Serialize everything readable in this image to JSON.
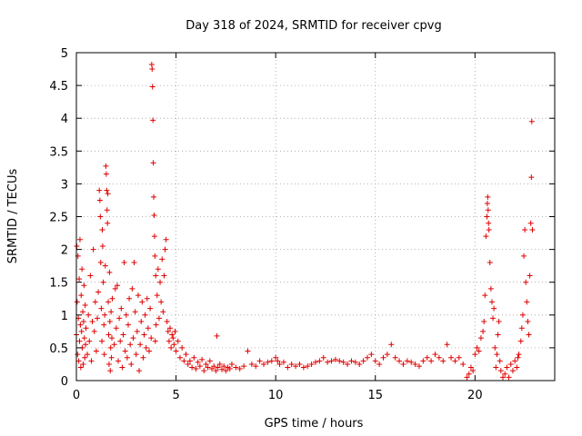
{
  "chart_data": {
    "type": "scatter",
    "title": "Day 318 of 2024, SRMTID for receiver cpvg",
    "xlabel": "GPS time / hours",
    "ylabel": "SRMTID / TECUs",
    "xlim": [
      0,
      24
    ],
    "ylim": [
      0,
      5
    ],
    "xticks": [
      0,
      5,
      10,
      15,
      20
    ],
    "xtick_labels": [
      "0",
      "5",
      "10",
      "15",
      "20"
    ],
    "yticks": [
      0,
      0.5,
      1,
      1.5,
      2,
      2.5,
      3,
      3.5,
      4,
      4.5,
      5
    ],
    "ytick_labels": [
      "0",
      "0.5",
      "1",
      "1.5",
      "2",
      "2.5",
      "3",
      "3.5",
      "4",
      "4.5",
      "5"
    ],
    "grid": true,
    "marker": "+",
    "color": "#e00000",
    "series": [
      {
        "name": "SRMTID",
        "points": [
          [
            0.0,
            0.7
          ],
          [
            0.02,
            2.05
          ],
          [
            0.04,
            1.2
          ],
          [
            0.06,
            0.4
          ],
          [
            0.08,
            1.9
          ],
          [
            0.1,
            0.95
          ],
          [
            0.12,
            0.3
          ],
          [
            0.14,
            1.55
          ],
          [
            0.16,
            0.6
          ],
          [
            0.18,
            2.15
          ],
          [
            0.2,
            0.85
          ],
          [
            0.22,
            0.2
          ],
          [
            0.24,
            1.3
          ],
          [
            0.26,
            0.75
          ],
          [
            0.28,
            1.7
          ],
          [
            0.3,
            0.5
          ],
          [
            0.32,
            1.05
          ],
          [
            0.34,
            0.25
          ],
          [
            0.36,
            0.9
          ],
          [
            0.38,
            1.45
          ],
          [
            0.4,
            0.65
          ],
          [
            0.42,
            0.35
          ],
          [
            0.44,
            1.15
          ],
          [
            0.46,
            0.55
          ],
          [
            0.48,
            0.8
          ],
          [
            0.55,
            0.4
          ],
          [
            0.6,
            1.0
          ],
          [
            0.65,
            0.6
          ],
          [
            0.7,
            1.6
          ],
          [
            0.75,
            0.3
          ],
          [
            0.8,
            0.9
          ],
          [
            0.85,
            2.0
          ],
          [
            0.9,
            0.75
          ],
          [
            0.95,
            1.2
          ],
          [
            1.0,
            0.45
          ],
          [
            1.05,
            0.95
          ],
          [
            1.1,
            1.35
          ],
          [
            1.15,
            2.9
          ],
          [
            1.18,
            2.75
          ],
          [
            1.2,
            2.5
          ],
          [
            1.22,
            1.8
          ],
          [
            1.25,
            1.1
          ],
          [
            1.28,
            0.6
          ],
          [
            1.3,
            2.3
          ],
          [
            1.32,
            2.05
          ],
          [
            1.35,
            1.5
          ],
          [
            1.38,
            0.85
          ],
          [
            1.4,
            0.4
          ],
          [
            1.42,
            1.0
          ],
          [
            1.45,
            1.75
          ],
          [
            1.48,
            3.27
          ],
          [
            1.5,
            3.15
          ],
          [
            1.52,
            2.9
          ],
          [
            1.54,
            2.6
          ],
          [
            1.56,
            2.4
          ],
          [
            1.58,
            2.85
          ],
          [
            1.6,
            1.2
          ],
          [
            1.62,
            0.7
          ],
          [
            1.64,
            0.25
          ],
          [
            1.66,
            1.65
          ],
          [
            1.68,
            0.9
          ],
          [
            1.7,
            0.15
          ],
          [
            1.72,
            0.5
          ],
          [
            1.74,
            1.05
          ],
          [
            1.76,
            0.35
          ],
          [
            1.78,
            0.65
          ],
          [
            1.8,
            1.25
          ],
          [
            1.9,
            0.55
          ],
          [
            1.95,
            1.4
          ],
          [
            2.0,
            0.8
          ],
          [
            2.05,
            1.45
          ],
          [
            2.1,
            0.3
          ],
          [
            2.15,
            0.95
          ],
          [
            2.2,
            0.6
          ],
          [
            2.25,
            1.1
          ],
          [
            2.3,
            0.2
          ],
          [
            2.35,
            0.7
          ],
          [
            2.4,
            1.8
          ],
          [
            2.45,
            0.45
          ],
          [
            2.5,
            1.0
          ],
          [
            2.55,
            0.35
          ],
          [
            2.6,
            0.85
          ],
          [
            2.65,
            1.25
          ],
          [
            2.7,
            0.55
          ],
          [
            2.75,
            0.25
          ],
          [
            2.8,
            1.4
          ],
          [
            2.85,
            0.65
          ],
          [
            2.9,
            1.8
          ],
          [
            2.95,
            1.05
          ],
          [
            3.0,
            0.4
          ],
          [
            3.05,
            0.75
          ],
          [
            3.1,
            1.3
          ],
          [
            3.15,
            0.15
          ],
          [
            3.2,
            0.55
          ],
          [
            3.25,
            0.9
          ],
          [
            3.3,
            1.2
          ],
          [
            3.35,
            0.35
          ],
          [
            3.4,
            0.7
          ],
          [
            3.45,
            1.0
          ],
          [
            3.5,
            0.5
          ],
          [
            3.55,
            1.25
          ],
          [
            3.6,
            0.8
          ],
          [
            3.65,
            0.45
          ],
          [
            3.7,
            1.1
          ],
          [
            3.75,
            0.65
          ],
          [
            3.78,
            4.82
          ],
          [
            3.8,
            4.75
          ],
          [
            3.82,
            4.48
          ],
          [
            3.84,
            3.97
          ],
          [
            3.86,
            3.32
          ],
          [
            3.88,
            2.8
          ],
          [
            3.9,
            2.52
          ],
          [
            3.92,
            2.2
          ],
          [
            3.94,
            1.9
          ],
          [
            3.96,
            0.6
          ],
          [
            3.98,
            1.6
          ],
          [
            4.0,
            0.85
          ],
          [
            4.05,
            1.3
          ],
          [
            4.1,
            1.7
          ],
          [
            4.15,
            0.95
          ],
          [
            4.2,
            1.5
          ],
          [
            4.25,
            1.2
          ],
          [
            4.3,
            1.85
          ],
          [
            4.35,
            1.05
          ],
          [
            4.4,
            1.6
          ],
          [
            4.45,
            2.0
          ],
          [
            4.5,
            2.15
          ],
          [
            4.55,
            0.9
          ],
          [
            4.6,
            0.75
          ],
          [
            4.65,
            0.6
          ],
          [
            4.7,
            0.8
          ],
          [
            4.75,
            0.5
          ],
          [
            4.8,
            0.7
          ],
          [
            4.85,
            0.65
          ],
          [
            4.9,
            0.55
          ],
          [
            4.95,
            0.75
          ],
          [
            5.0,
            0.45
          ],
          [
            5.1,
            0.6
          ],
          [
            5.2,
            0.35
          ],
          [
            5.3,
            0.5
          ],
          [
            5.4,
            0.3
          ],
          [
            5.5,
            0.4
          ],
          [
            5.6,
            0.25
          ],
          [
            5.7,
            0.3
          ],
          [
            5.8,
            0.2
          ],
          [
            5.9,
            0.35
          ],
          [
            6.0,
            0.18
          ],
          [
            6.1,
            0.28
          ],
          [
            6.2,
            0.22
          ],
          [
            6.3,
            0.32
          ],
          [
            6.4,
            0.15
          ],
          [
            6.5,
            0.25
          ],
          [
            6.6,
            0.2
          ],
          [
            6.7,
            0.3
          ],
          [
            6.8,
            0.18
          ],
          [
            6.9,
            0.22
          ],
          [
            7.0,
            0.15
          ],
          [
            7.05,
            0.68
          ],
          [
            7.1,
            0.2
          ],
          [
            7.2,
            0.25
          ],
          [
            7.3,
            0.17
          ],
          [
            7.4,
            0.22
          ],
          [
            7.5,
            0.15
          ],
          [
            7.6,
            0.2
          ],
          [
            7.7,
            0.18
          ],
          [
            7.8,
            0.25
          ],
          [
            8.0,
            0.2
          ],
          [
            8.2,
            0.18
          ],
          [
            8.4,
            0.22
          ],
          [
            8.6,
            0.45
          ],
          [
            8.8,
            0.25
          ],
          [
            9.0,
            0.22
          ],
          [
            9.2,
            0.3
          ],
          [
            9.4,
            0.25
          ],
          [
            9.6,
            0.28
          ],
          [
            9.8,
            0.3
          ],
          [
            10.0,
            0.35
          ],
          [
            10.1,
            0.3
          ],
          [
            10.2,
            0.25
          ],
          [
            10.4,
            0.28
          ],
          [
            10.6,
            0.2
          ],
          [
            10.8,
            0.25
          ],
          [
            11.0,
            0.22
          ],
          [
            11.2,
            0.25
          ],
          [
            11.4,
            0.2
          ],
          [
            11.6,
            0.22
          ],
          [
            11.8,
            0.25
          ],
          [
            12.0,
            0.28
          ],
          [
            12.2,
            0.3
          ],
          [
            12.4,
            0.35
          ],
          [
            12.6,
            0.28
          ],
          [
            12.8,
            0.3
          ],
          [
            13.0,
            0.32
          ],
          [
            13.2,
            0.3
          ],
          [
            13.4,
            0.28
          ],
          [
            13.6,
            0.25
          ],
          [
            13.8,
            0.3
          ],
          [
            14.0,
            0.28
          ],
          [
            14.2,
            0.25
          ],
          [
            14.4,
            0.3
          ],
          [
            14.6,
            0.35
          ],
          [
            14.8,
            0.4
          ],
          [
            15.0,
            0.3
          ],
          [
            15.2,
            0.25
          ],
          [
            15.4,
            0.35
          ],
          [
            15.6,
            0.4
          ],
          [
            15.8,
            0.55
          ],
          [
            16.0,
            0.35
          ],
          [
            16.2,
            0.3
          ],
          [
            16.4,
            0.25
          ],
          [
            16.6,
            0.3
          ],
          [
            16.8,
            0.28
          ],
          [
            17.0,
            0.25
          ],
          [
            17.2,
            0.22
          ],
          [
            17.4,
            0.3
          ],
          [
            17.6,
            0.35
          ],
          [
            17.8,
            0.3
          ],
          [
            18.0,
            0.4
          ],
          [
            18.2,
            0.35
          ],
          [
            18.4,
            0.3
          ],
          [
            18.6,
            0.55
          ],
          [
            18.8,
            0.35
          ],
          [
            19.0,
            0.3
          ],
          [
            19.2,
            0.35
          ],
          [
            19.4,
            0.25
          ],
          [
            19.6,
            0.05
          ],
          [
            19.7,
            0.1
          ],
          [
            19.8,
            0.2
          ],
          [
            19.9,
            0.15
          ],
          [
            20.0,
            0.4
          ],
          [
            20.1,
            0.5
          ],
          [
            20.2,
            0.45
          ],
          [
            20.3,
            0.65
          ],
          [
            20.4,
            0.75
          ],
          [
            20.45,
            0.9
          ],
          [
            20.5,
            1.3
          ],
          [
            20.55,
            2.2
          ],
          [
            20.6,
            2.5
          ],
          [
            20.62,
            2.7
          ],
          [
            20.64,
            2.8
          ],
          [
            20.66,
            2.6
          ],
          [
            20.68,
            2.4
          ],
          [
            20.7,
            2.3
          ],
          [
            20.75,
            1.8
          ],
          [
            20.8,
            1.4
          ],
          [
            20.85,
            1.2
          ],
          [
            20.9,
            0.95
          ],
          [
            20.95,
            1.1
          ],
          [
            21.0,
            0.5
          ],
          [
            21.05,
            0.2
          ],
          [
            21.1,
            0.4
          ],
          [
            21.15,
            0.7
          ],
          [
            21.2,
            0.9
          ],
          [
            21.25,
            0.3
          ],
          [
            21.3,
            0.15
          ],
          [
            21.4,
            0.05
          ],
          [
            21.5,
            0.1
          ],
          [
            21.6,
            0.2
          ],
          [
            21.7,
            0.05
          ],
          [
            21.8,
            0.25
          ],
          [
            21.9,
            0.15
          ],
          [
            22.0,
            0.3
          ],
          [
            22.1,
            0.2
          ],
          [
            22.15,
            0.35
          ],
          [
            22.2,
            0.4
          ],
          [
            22.3,
            0.6
          ],
          [
            22.35,
            0.8
          ],
          [
            22.4,
            1.0
          ],
          [
            22.45,
            1.9
          ],
          [
            22.5,
            2.3
          ],
          [
            22.55,
            1.5
          ],
          [
            22.6,
            1.2
          ],
          [
            22.65,
            0.9
          ],
          [
            22.7,
            0.7
          ],
          [
            22.75,
            1.6
          ],
          [
            22.8,
            2.4
          ],
          [
            22.83,
            3.1
          ],
          [
            22.85,
            3.95
          ],
          [
            22.88,
            2.3
          ]
        ]
      }
    ]
  }
}
